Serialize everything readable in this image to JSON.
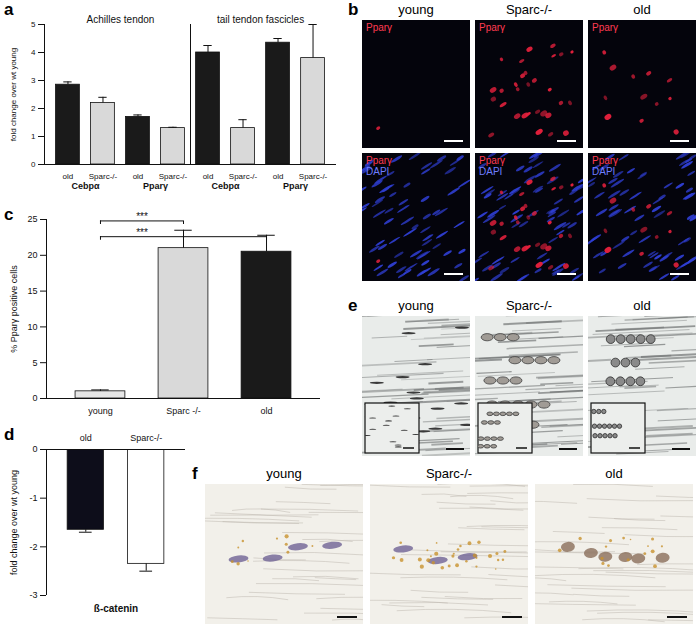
{
  "chart_data": [
    {
      "type": "bar",
      "title": "a",
      "categories": [
        "old",
        "Sparc-/-",
        "old",
        "Sparc-/-",
        "old",
        "Sparc-/-",
        "old",
        "Sparc-/-"
      ],
      "values": [
        2.85,
        2.2,
        1.7,
        1.3,
        4.0,
        1.3,
        4.35,
        3.8
      ],
      "errors": [
        0.1,
        0.2,
        0.07,
        0.03,
        0.25,
        0.3,
        0.15,
        1.2
      ],
      "colors": [
        "#1a1a1a",
        "#d9d9d9",
        "#1a1a1a",
        "#d9d9d9",
        "#1a1a1a",
        "#d9d9d9",
        "#1a1a1a",
        "#d9d9d9"
      ],
      "group_labels": [
        "Cebpα",
        "Pparγ",
        "Cebpα",
        "Pparγ"
      ],
      "sections": [
        "Achilles tendon",
        "tail tendon fascicles"
      ],
      "ylabel": "fold change over wt young",
      "ylim": [
        0,
        5
      ],
      "yticks": [
        0,
        1,
        2,
        3,
        4,
        5
      ]
    },
    {
      "type": "bar",
      "title": "c",
      "categories": [
        "young",
        "Sparc -/-",
        "old"
      ],
      "values": [
        1.0,
        21.0,
        20.5
      ],
      "errors": [
        0.2,
        2.5,
        2.3
      ],
      "colors": [
        "#e6e6e6",
        "#d9d9d9",
        "#1a1a1a"
      ],
      "ylabel": "% Pparγ positive cells",
      "ylim": [
        0,
        25
      ],
      "yticks": [
        0,
        5,
        10,
        15,
        20,
        25
      ],
      "significance": [
        {
          "between": [
            "young",
            "Sparc -/-"
          ],
          "y": 24.8,
          "label": "***"
        },
        {
          "between": [
            "young",
            "old"
          ],
          "y": 22.6,
          "label": "***"
        }
      ]
    },
    {
      "type": "bar",
      "title": "d",
      "categories": [
        "old",
        "Sparc-/-"
      ],
      "values": [
        -1.65,
        -2.35
      ],
      "errors": [
        0.05,
        0.15
      ],
      "colors": [
        "#0d0d1a",
        "#ffffff"
      ],
      "xlabel": "ß-catenin",
      "ylabel": "fold change over wt young",
      "ylim": [
        -3,
        0
      ],
      "yticks": [
        0,
        -1,
        -2,
        -3
      ]
    }
  ],
  "images": [
    {
      "title": "b",
      "columns": [
        "young",
        "Sparc-/-",
        "old"
      ],
      "rows": [
        [
          "Pparγ"
        ],
        [
          "Pparγ",
          "DAPI"
        ]
      ]
    },
    {
      "title": "e",
      "columns": [
        "young",
        "Sparc-/-",
        "old"
      ]
    },
    {
      "title": "f",
      "columns": [
        "young",
        "Sparc-/-",
        "old"
      ]
    }
  ]
}
